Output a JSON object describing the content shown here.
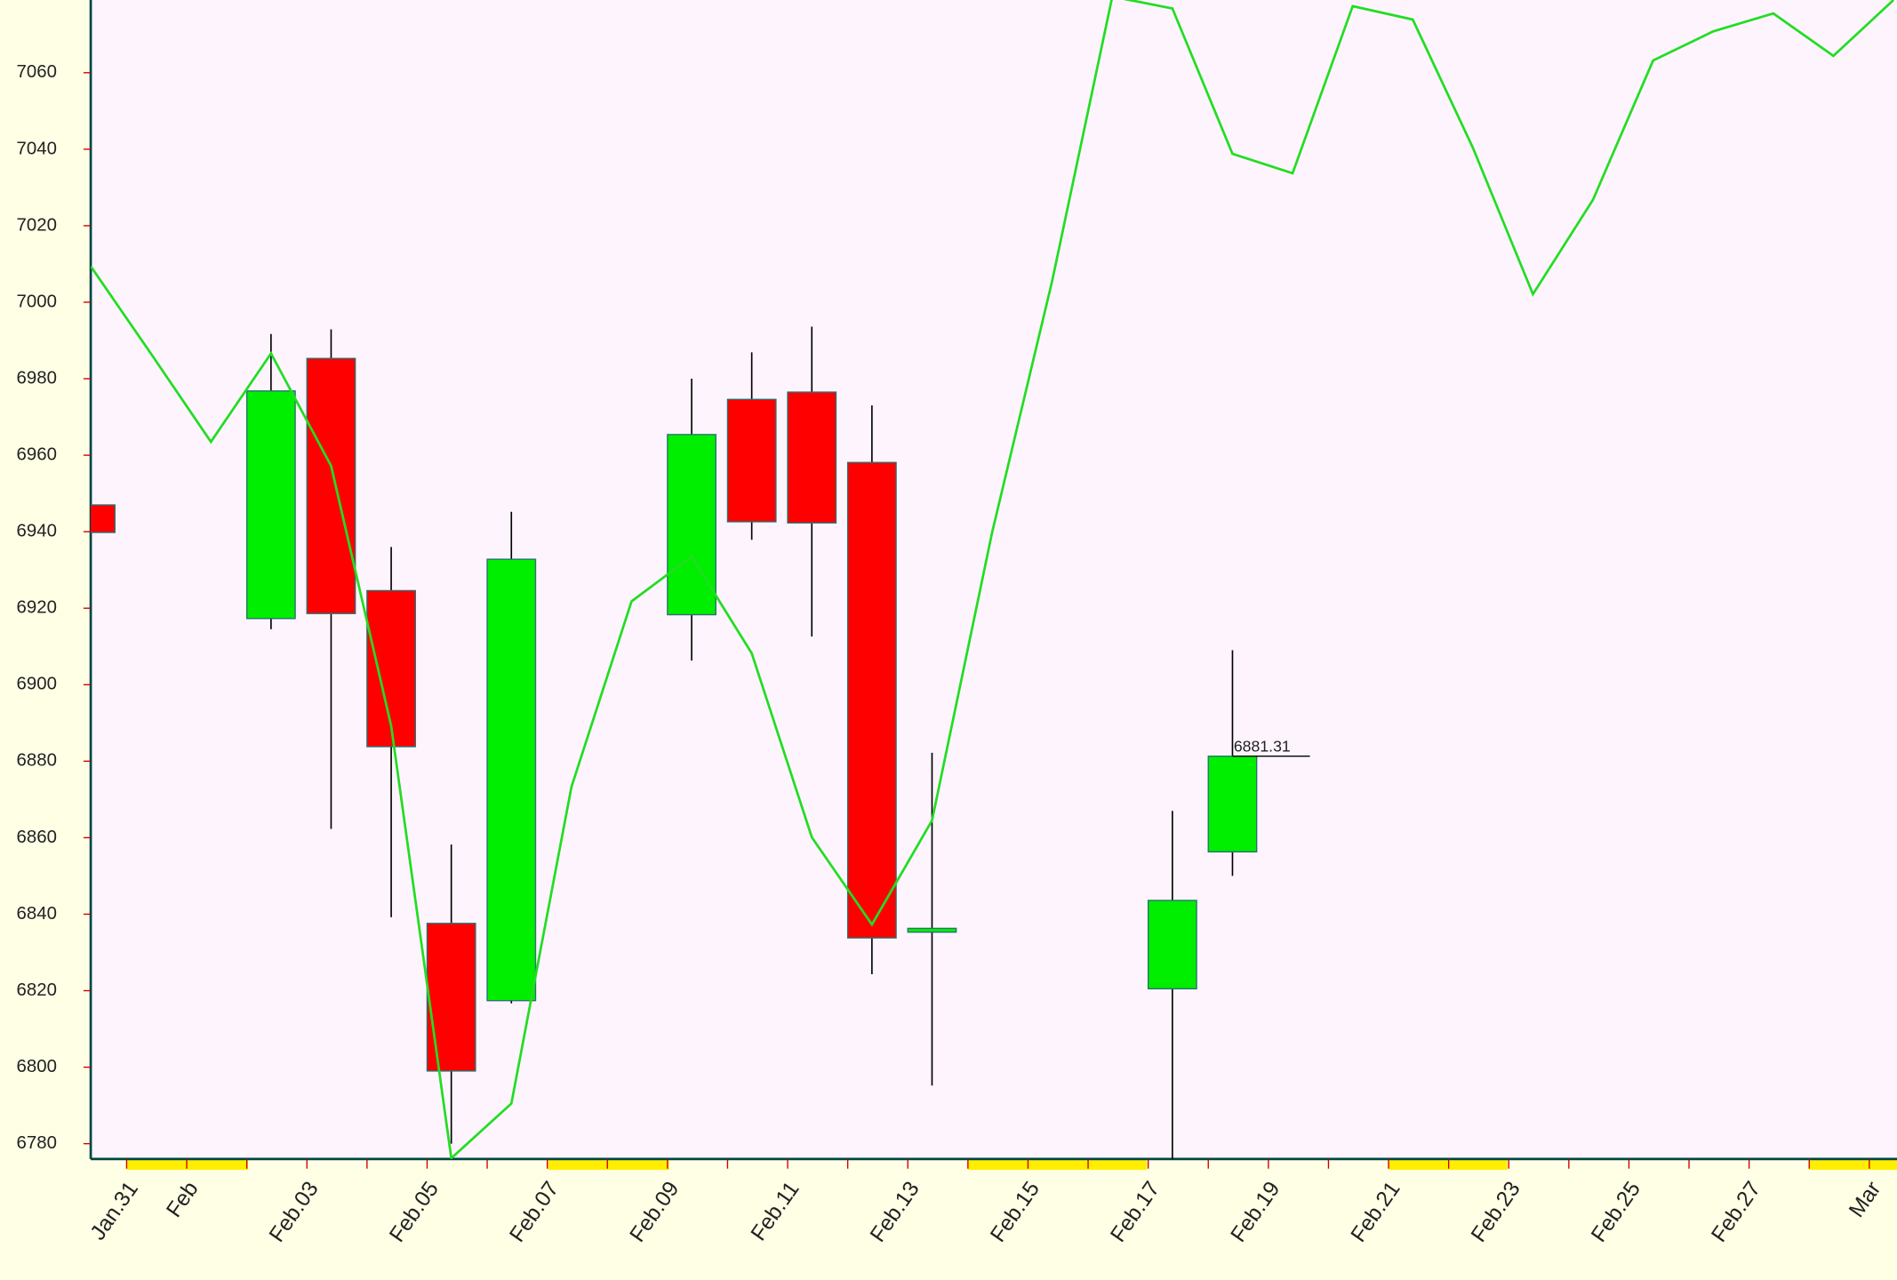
{
  "chart_data": {
    "type": "candlestick",
    "categories": [
      null,
      "Jan.31",
      "Feb",
      null,
      "Feb.03",
      null,
      "Feb.05",
      null,
      "Feb.07",
      null,
      "Feb.09",
      null,
      "Feb.11",
      null,
      "Feb.13",
      null,
      "Feb.15",
      null,
      "Feb.17",
      null,
      "Feb.19",
      null,
      "Feb.21",
      null,
      "Feb.23",
      null,
      "Feb.25",
      null,
      "Feb.27",
      null,
      "Mar"
    ],
    "open": [
      6947,
      null,
      null,
      6917.3,
      6985.3,
      6924.6,
      6837.6,
      6817.4,
      null,
      null,
      6918.3,
      6974.6,
      6976.5,
      6958.1,
      6835.3,
      null,
      null,
      null,
      6820.5,
      6856.3,
      null,
      null,
      null,
      null,
      null,
      null,
      null,
      null,
      null,
      null,
      null
    ],
    "high": [
      6947,
      null,
      null,
      6991.7,
      6992.9,
      6936,
      6858.2,
      6945.2,
      null,
      null,
      6980,
      6986.9,
      6993.6,
      6973,
      6882.2,
      null,
      null,
      null,
      6867,
      6909,
      null,
      null,
      null,
      null,
      null,
      null,
      null,
      null,
      null,
      null,
      null
    ],
    "low": [
      6939.8,
      null,
      null,
      6914.5,
      6862.3,
      6839.2,
      6780,
      6816.7,
      null,
      null,
      6906.3,
      6937.9,
      6912.6,
      6824.3,
      6795.2,
      null,
      null,
      null,
      6776,
      6850,
      null,
      null,
      null,
      null,
      null,
      null,
      null,
      null,
      null,
      null,
      null
    ],
    "close": [
      6939.8,
      null,
      null,
      6976.8,
      6918.6,
      6883.8,
      6799,
      6932.8,
      null,
      null,
      6965.4,
      6942.6,
      6942.3,
      6833.8,
      6836.3,
      null,
      null,
      null,
      6843.6,
      6881.31,
      null,
      null,
      null,
      null,
      null,
      null,
      null,
      null,
      null,
      null,
      null
    ],
    "up_color": "#00ee00",
    "down_color": "#ff0000",
    "line": {
      "color": "#22dd22",
      "values": [
        7009.4,
        6986.6,
        6963.5,
        6986.6,
        6957.2,
        6889.2,
        6776.2,
        6790.5,
        6873.3,
        6921.8,
        6933.5,
        6908.2,
        6860.1,
        6837.3,
        6864.5,
        6939.8,
        7005.6,
        7079.9,
        7076.8,
        7038.8,
        7033.7,
        7077.4,
        7073.9,
        7040.4,
        7002.1,
        7026.8,
        7063.2,
        7070.8,
        7075.5,
        7064.4,
        7079
      ]
    },
    "annotation": {
      "value": 6881.31,
      "label": "6881.31"
    },
    "ylim": [
      6776,
      7079
    ],
    "yticks": [
      6780,
      6800,
      6820,
      6840,
      6860,
      6880,
      6900,
      6920,
      6940,
      6960,
      6980,
      7000,
      7020,
      7040,
      7060
    ]
  }
}
